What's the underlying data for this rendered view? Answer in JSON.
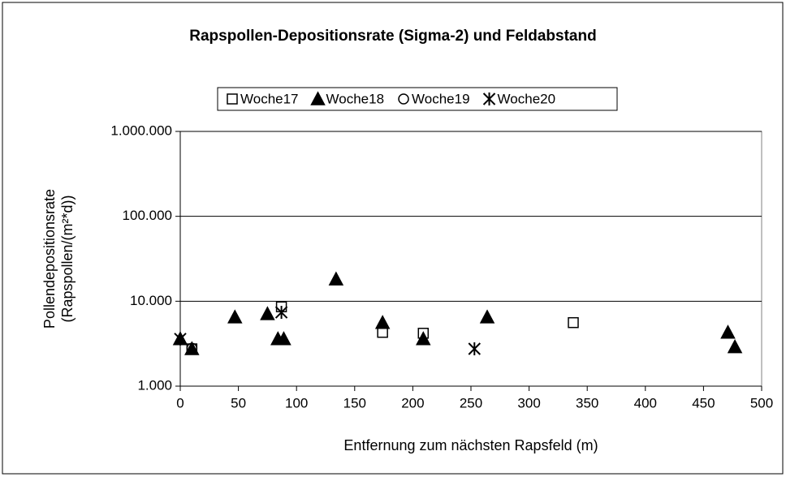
{
  "chart_data": {
    "type": "scatter",
    "title": "Rapspollen-Depositionsrate (Sigma-2) und Feldabstand",
    "x_label": "Entfernung zum nächsten Rapsfeld (m)",
    "y_label": [
      "Pollendepositionsrate",
      "(Rapspollen/(m²*d))"
    ],
    "xlim": [
      0,
      500
    ],
    "xticks": [
      0,
      50,
      100,
      150,
      200,
      250,
      300,
      350,
      400,
      450,
      500
    ],
    "ylim": [
      1000,
      1000000
    ],
    "log_y": true,
    "grid": true,
    "yticks": [
      {
        "value": 1000,
        "label": "1.000"
      },
      {
        "value": 10000,
        "label": "10.000"
      },
      {
        "value": 100000,
        "label": "100.000"
      },
      {
        "value": 1000000,
        "label": "1.000.000"
      }
    ],
    "legend": "top",
    "series": [
      {
        "name": "Woche17",
        "marker": "square",
        "color": "#000000",
        "x": [
          10,
          87,
          174,
          209,
          338
        ],
        "values": [
          2750,
          8600,
          4300,
          4200,
          5600
        ]
      },
      {
        "name": "Woche18",
        "marker": "triangle",
        "color": "#000000",
        "x": [
          0,
          10,
          47,
          75,
          84,
          89,
          134,
          174,
          209,
          264,
          471,
          477
        ],
        "values": [
          3600,
          2750,
          6500,
          7100,
          3600,
          3600,
          18200,
          5600,
          3600,
          6500,
          4300,
          2900
        ]
      },
      {
        "name": "Woche19",
        "marker": "circle",
        "color": "#000000",
        "x": [
          10
        ],
        "values": [
          2800
        ]
      },
      {
        "name": "Woche20",
        "marker": "star",
        "color": "#000000",
        "x": [
          0,
          87,
          253
        ],
        "values": [
          3600,
          7400,
          2750
        ]
      }
    ]
  }
}
